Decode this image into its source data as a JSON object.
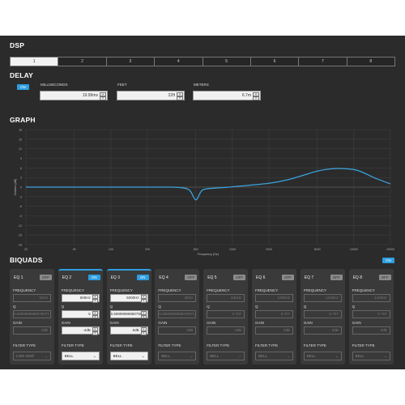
{
  "dsp": {
    "title": "DSP",
    "tabs": [
      "1",
      "2",
      "3",
      "4",
      "5",
      "6",
      "7",
      "8"
    ],
    "active_tab": "1"
  },
  "delay": {
    "title": "DELAY",
    "toggle": "ON",
    "milliseconds_label": "MILLISECONDS",
    "milliseconds_value": "19.99ms",
    "feet_label": "FEET",
    "feet_value": "22ft",
    "meters_label": "METERS",
    "meters_value": "6.7m"
  },
  "graph": {
    "title": "GRAPH"
  },
  "chart_data": {
    "type": "line",
    "xlabel": "Frequency (Hz)",
    "ylabel": "Volume (dB)",
    "x_scale": "log",
    "xlim": [
      20,
      20000
    ],
    "ylim": [
      -18,
      18
    ],
    "x_ticks": [
      "20",
      "50",
      "100",
      "200",
      "500",
      "1000",
      "2000",
      "5000",
      "10000",
      "20000"
    ],
    "y_ticks": [
      "18",
      "15",
      "12",
      "9",
      "6",
      "3",
      "0",
      "-3",
      "-6",
      "-9",
      "-12",
      "-15",
      "-18"
    ],
    "grid": true,
    "line_color": "#3aa3dc",
    "series": [
      {
        "x": [
          20,
          100,
          300,
          400,
          450,
          500,
          550,
          600,
          800,
          1000,
          2000,
          3000,
          5000,
          7000,
          10000,
          12000,
          15000,
          20000
        ],
        "y": [
          0,
          0,
          0,
          -0.3,
          -1.2,
          -4,
          -1.5,
          -0.6,
          -0.2,
          0.1,
          1.2,
          2.5,
          5,
          5.8,
          5.5,
          4.5,
          2.8,
          1
        ]
      }
    ]
  },
  "biquads": {
    "title": "BIQUADS",
    "toggle": "ON",
    "frequency_label": "FREQUENCY",
    "q_label": "Q",
    "gain_label": "GAIN",
    "filter_type_label": "FILTER TYPE",
    "eq": [
      {
        "name": "EQ 1",
        "toggle": "OFF",
        "frequency": "50Hz",
        "q": "0.6999999988079071",
        "gain": "0dB",
        "filter": "LOW Shelf"
      },
      {
        "name": "EQ 2",
        "toggle": "ON",
        "frequency": "500Hz",
        "q": "5",
        "gain": "-4dB",
        "filter": "BELL"
      },
      {
        "name": "EQ 3",
        "toggle": "ON",
        "frequency": "5000Hz",
        "q": "0.6999999988079071",
        "gain": "5dB",
        "filter": "BELL"
      },
      {
        "name": "EQ 4",
        "toggle": "OFF",
        "frequency": "20Hz",
        "q": "0.6999999988079071",
        "gain": "0dB",
        "filter": "BELL"
      },
      {
        "name": "EQ 5",
        "toggle": "OFF",
        "frequency": "630Hz",
        "q": "0.707",
        "gain": "-3dB",
        "filter": "BELL"
      },
      {
        "name": "EQ 6",
        "toggle": "OFF",
        "frequency": "1000Hz",
        "q": "0.707",
        "gain": "3dB",
        "filter": "BELL"
      },
      {
        "name": "EQ 7",
        "toggle": "OFF",
        "frequency": "1220Hz",
        "q": "0.707",
        "gain": "3dB",
        "filter": "BELL"
      },
      {
        "name": "EQ 8",
        "toggle": "OFF",
        "frequency": "1420Hz",
        "q": "0.707",
        "gain": "0dB",
        "filter": "BELL"
      }
    ]
  }
}
